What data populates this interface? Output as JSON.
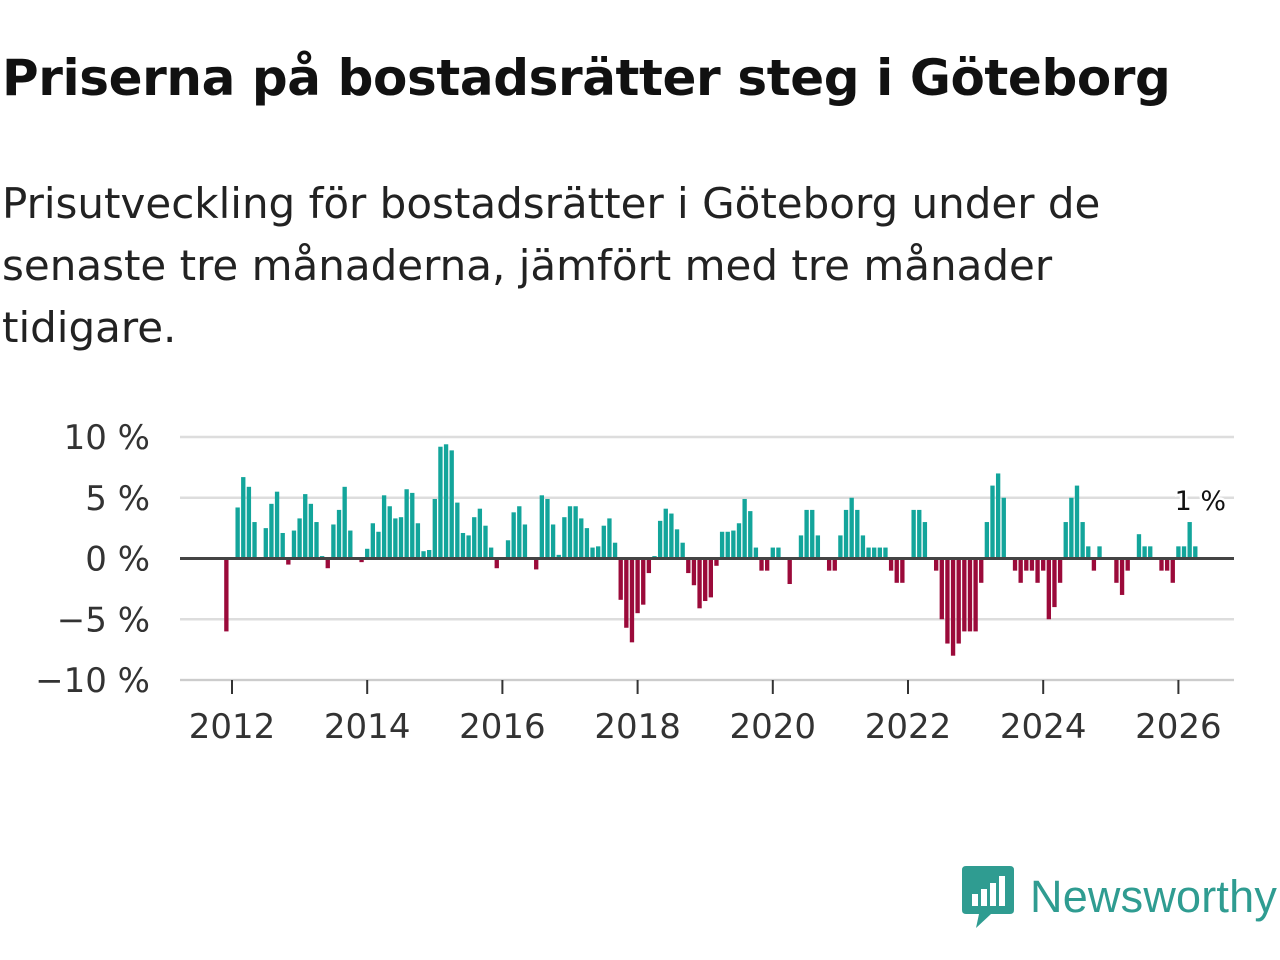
{
  "header": {
    "title": "Priserna på bostadsrätter steg i Göteborg",
    "subtitle": "Prisutveckling för bostadsrätter i Göteborg under de senaste tre månaderna, jämfört med tre månader tidigare."
  },
  "colors": {
    "positive": "#13a59b",
    "negative": "#9b0a3a",
    "grid": "#dddddd",
    "zero_line": "#444444",
    "brand": "#2f9c91"
  },
  "brand": {
    "name": "Newsworthy",
    "icon": "newsworthy-logo-icon"
  },
  "chart_data": {
    "type": "bar",
    "title": "Priserna på bostadsrätter steg i Göteborg",
    "subtitle": "Prisutveckling för bostadsrätter i Göteborg under de senaste tre månaderna, jämfört med tre månader tidigare.",
    "xlabel": "",
    "ylabel": "",
    "unit": "%",
    "start": "2011-12",
    "frequency": "monthly",
    "ylim": [
      -10,
      10
    ],
    "yticks": [
      10,
      5,
      0,
      -5,
      -10
    ],
    "ytick_labels": [
      "10 %",
      "5 %",
      "0 %",
      "−5 %",
      "−10 %"
    ],
    "xticks": [
      2012,
      2014,
      2016,
      2018,
      2020,
      2022,
      2024,
      2026
    ],
    "xtick_labels": [
      "2012",
      "2014",
      "2016",
      "2018",
      "2020",
      "2022",
      "2024",
      "2026"
    ],
    "grid": true,
    "values": [
      -6,
      0,
      4.2,
      6.7,
      5.9,
      3,
      0,
      2.5,
      4.5,
      5.5,
      2.1,
      -0.5,
      2.3,
      3.3,
      5.3,
      4.5,
      3,
      0.2,
      -0.8,
      2.8,
      4,
      5.9,
      2.3,
      0,
      -0.3,
      0.8,
      2.9,
      2.2,
      5.2,
      4.3,
      3.3,
      3.4,
      5.7,
      5.4,
      2.9,
      0.6,
      0.7,
      4.9,
      9.2,
      9.4,
      8.9,
      4.6,
      2.1,
      1.9,
      3.4,
      4.1,
      2.7,
      0.9,
      -0.8,
      0,
      1.5,
      3.8,
      4.3,
      2.8,
      0,
      -0.9,
      5.2,
      4.9,
      2.8,
      0.3,
      3.4,
      4.3,
      4.3,
      3.3,
      2.5,
      0.9,
      1,
      2.7,
      3.3,
      1.3,
      -3.4,
      -5.7,
      -6.9,
      -4.5,
      -3.8,
      -1.2,
      0.2,
      3.1,
      4.1,
      3.7,
      2.4,
      1.3,
      -1.2,
      -2.2,
      -4.1,
      -3.5,
      -3.2,
      -0.6,
      2.2,
      2.2,
      2.3,
      2.9,
      4.9,
      3.9,
      0.9,
      -1,
      -1,
      0.9,
      0.9,
      0,
      -2.1,
      0,
      1.9,
      4,
      4,
      1.9,
      0,
      -1,
      -1,
      1.9,
      4,
      5,
      4,
      1.9,
      0.9,
      0.9,
      0.9,
      0.9,
      -1,
      -2,
      -2,
      0,
      4,
      4,
      3,
      0,
      -1,
      -5,
      -7,
      -8,
      -7,
      -6,
      -6,
      -6,
      -2,
      3,
      6,
      7,
      5,
      0,
      -1,
      -2,
      -1,
      -1,
      -2,
      -1,
      -5,
      -4,
      -2,
      3,
      5,
      6,
      3,
      1,
      -1,
      1,
      0,
      0,
      -2,
      -3,
      -1,
      0,
      2,
      1,
      1,
      0,
      -1,
      -1,
      -2,
      1,
      1,
      3,
      1
    ],
    "annotation": {
      "text": "1 %",
      "target": "last"
    }
  }
}
